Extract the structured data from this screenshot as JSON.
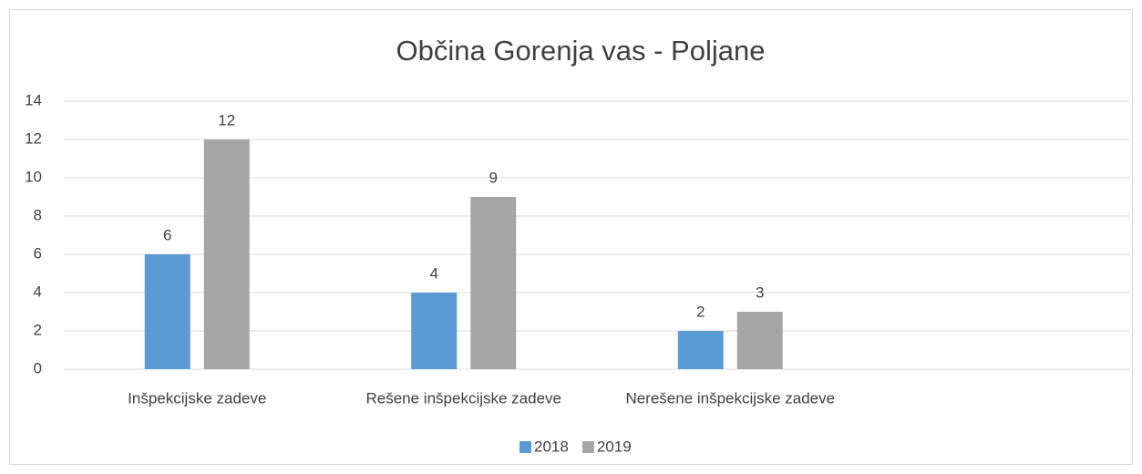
{
  "chart_data": {
    "type": "bar",
    "title": "Občina Gorenja vas - Poljane",
    "categories": [
      "Inšpekcijske zadeve",
      "Rešene inšpekcijske zadeve",
      "Nerešene inšpekcijske zadeve",
      null
    ],
    "series": [
      {
        "name": "2018",
        "color": "#5b9bd5",
        "values": [
          6,
          4,
          2,
          null
        ]
      },
      {
        "name": "2019",
        "color": "#a5a5a5",
        "values": [
          12,
          9,
          3,
          null
        ]
      }
    ],
    "ylim": [
      0,
      14
    ],
    "yticks": [
      0,
      2,
      4,
      6,
      8,
      10,
      12,
      14
    ],
    "grid": true,
    "legend": "bottom"
  }
}
